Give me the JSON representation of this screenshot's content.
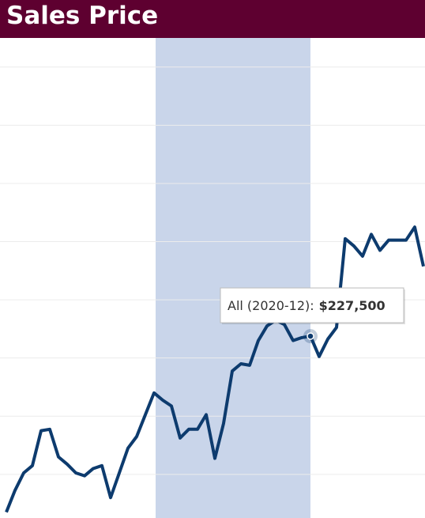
{
  "chart_data": {
    "type": "line",
    "title": "Sales Price",
    "categories": [
      null,
      null,
      null,
      null,
      null,
      null,
      null,
      null,
      null,
      null,
      null,
      null,
      null,
      null,
      null,
      null,
      null,
      null,
      null,
      null,
      null,
      null,
      null,
      null,
      null,
      null,
      null,
      null,
      null,
      null,
      null,
      null,
      null,
      null,
      null,
      null,
      null,
      null,
      null,
      null,
      null,
      null,
      null,
      null,
      null,
      null,
      null,
      null,
      null
    ],
    "series": [
      {
        "name": "All",
        "color": "#0d3b6e",
        "values": [
          167000,
          174500,
          180500,
          183000,
          195000,
          195500,
          186000,
          183500,
          180500,
          179500,
          182000,
          183000,
          172000,
          180500,
          189000,
          193000,
          200500,
          208000,
          205500,
          203500,
          192500,
          195500,
          195500,
          200500,
          185500,
          197500,
          215500,
          218000,
          217500,
          226000,
          231000,
          233000,
          231500,
          226000,
          227000,
          227500,
          220500,
          226500,
          230500,
          261000,
          258500,
          255000,
          262500,
          257000,
          260500,
          260500,
          260500,
          265000,
          251500
        ],
        "value_labels": [
          null,
          null,
          null,
          null,
          null,
          null,
          null,
          null,
          null,
          null,
          null,
          null,
          null,
          null,
          null,
          null,
          null,
          null,
          null,
          null,
          null,
          null,
          null,
          null,
          null,
          null,
          null,
          null,
          null,
          null,
          null,
          null,
          null,
          null,
          null,
          "$227,500",
          null,
          null,
          null,
          null,
          null,
          null,
          null,
          null,
          null,
          null,
          null,
          null,
          null
        ]
      }
    ],
    "tooltip": {
      "label": "All (2020-12):",
      "index": 35
    },
    "ylim": [
      165000,
      330000
    ],
    "yticks": [
      180000,
      200000,
      220000,
      240000,
      260000,
      280000,
      300000,
      320000
    ],
    "grid": true
  }
}
